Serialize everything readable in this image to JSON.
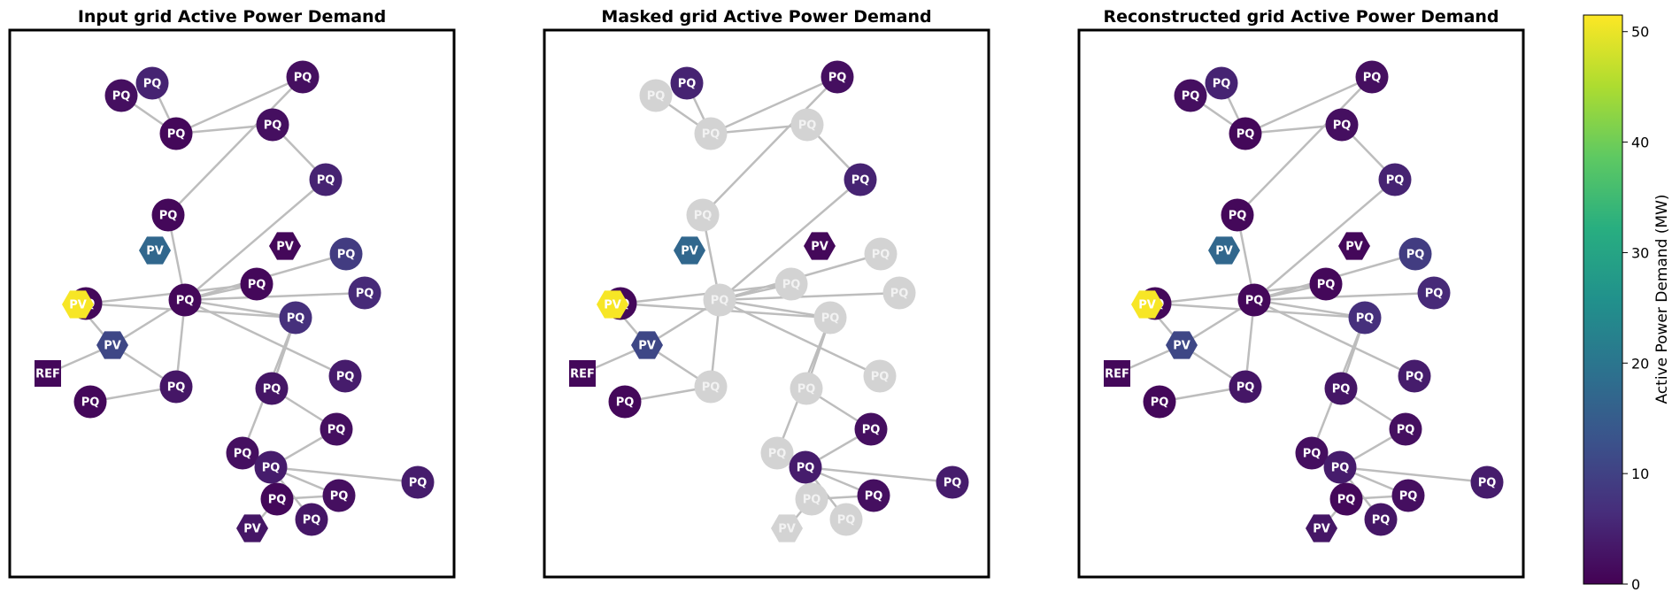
{
  "chart_data": {
    "type": "network",
    "panels": [
      {
        "title": "Input grid Active Power Demand",
        "nodes": [
          {
            "id": 0,
            "type": "PQ",
            "value": 2
          },
          {
            "id": 1,
            "type": "PQ",
            "value": 5
          },
          {
            "id": 2,
            "type": "PQ",
            "value": 1
          },
          {
            "id": 3,
            "type": "PQ",
            "value": 2
          },
          {
            "id": 4,
            "type": "PQ",
            "value": 2
          },
          {
            "id": 5,
            "type": "PQ",
            "value": 5
          },
          {
            "id": 6,
            "type": "PQ",
            "value": 1
          },
          {
            "id": 7,
            "type": "PV",
            "value": 17
          },
          {
            "id": 8,
            "type": "PV",
            "value": 1
          },
          {
            "id": 9,
            "type": "PQ",
            "value": 1
          },
          {
            "id": 10,
            "type": "PQ",
            "value": 9
          },
          {
            "id": 11,
            "type": "PQ",
            "value": 1
          },
          {
            "id": 12,
            "type": "PQ",
            "value": 1
          },
          {
            "id": 13,
            "type": "PQ",
            "value": 7
          },
          {
            "id": 14,
            "type": "PV",
            "value": 51
          },
          {
            "id": 15,
            "type": "PV",
            "value": 11
          },
          {
            "id": 16,
            "type": "PQ",
            "value": 3
          },
          {
            "id": 17,
            "type": "PQ",
            "value": 6
          },
          {
            "id": 18,
            "type": "REF",
            "value": 1
          },
          {
            "id": 19,
            "type": "PQ",
            "value": 1
          },
          {
            "id": 20,
            "type": "PQ",
            "value": 3
          },
          {
            "id": 21,
            "type": "PQ",
            "value": 2
          },
          {
            "id": 22,
            "type": "PQ",
            "value": 2
          },
          {
            "id": 23,
            "type": "PQ",
            "value": 4
          },
          {
            "id": 24,
            "type": "PQ",
            "value": 4
          },
          {
            "id": 25,
            "type": "PQ",
            "value": 1
          },
          {
            "id": 26,
            "type": "PQ",
            "value": 4
          },
          {
            "id": 27,
            "type": "PQ",
            "value": 2
          },
          {
            "id": 28,
            "type": "PQ",
            "value": 3
          },
          {
            "id": 29,
            "type": "PV",
            "value": 3
          }
        ]
      },
      {
        "title": "Masked grid Active Power Demand",
        "nodes": [
          {
            "id": 0,
            "type": "PQ",
            "value": null
          },
          {
            "id": 1,
            "type": "PQ",
            "value": 5
          },
          {
            "id": 2,
            "type": "PQ",
            "value": null
          },
          {
            "id": 3,
            "type": "PQ",
            "value": null
          },
          {
            "id": 4,
            "type": "PQ",
            "value": 2
          },
          {
            "id": 5,
            "type": "PQ",
            "value": 5
          },
          {
            "id": 6,
            "type": "PQ",
            "value": null
          },
          {
            "id": 7,
            "type": "PV",
            "value": 17
          },
          {
            "id": 8,
            "type": "PV",
            "value": 1
          },
          {
            "id": 9,
            "type": "PQ",
            "value": null
          },
          {
            "id": 10,
            "type": "PQ",
            "value": null
          },
          {
            "id": 11,
            "type": "PQ",
            "value": null
          },
          {
            "id": 12,
            "type": "PQ",
            "value": 1
          },
          {
            "id": 13,
            "type": "PQ",
            "value": null
          },
          {
            "id": 14,
            "type": "PV",
            "value": 51
          },
          {
            "id": 15,
            "type": "PV",
            "value": 11
          },
          {
            "id": 16,
            "type": "PQ",
            "value": null
          },
          {
            "id": 17,
            "type": "PQ",
            "value": null
          },
          {
            "id": 18,
            "type": "REF",
            "value": 1
          },
          {
            "id": 19,
            "type": "PQ",
            "value": 1
          },
          {
            "id": 20,
            "type": "PQ",
            "value": null
          },
          {
            "id": 21,
            "type": "PQ",
            "value": 2
          },
          {
            "id": 22,
            "type": "PQ",
            "value": null
          },
          {
            "id": 23,
            "type": "PQ",
            "value": 4
          },
          {
            "id": 24,
            "type": "PQ",
            "value": null
          },
          {
            "id": 25,
            "type": "PQ",
            "value": null
          },
          {
            "id": 26,
            "type": "PQ",
            "value": 4
          },
          {
            "id": 27,
            "type": "PQ",
            "value": 2
          },
          {
            "id": 28,
            "type": "PQ",
            "value": null
          },
          {
            "id": 29,
            "type": "PV",
            "value": null
          }
        ]
      },
      {
        "title": "Reconstructed grid Active Power Demand",
        "nodes": [
          {
            "id": 0,
            "type": "PQ",
            "value": 2
          },
          {
            "id": 1,
            "type": "PQ",
            "value": 5
          },
          {
            "id": 2,
            "type": "PQ",
            "value": 1
          },
          {
            "id": 3,
            "type": "PQ",
            "value": 2
          },
          {
            "id": 4,
            "type": "PQ",
            "value": 2
          },
          {
            "id": 5,
            "type": "PQ",
            "value": 5
          },
          {
            "id": 6,
            "type": "PQ",
            "value": 1
          },
          {
            "id": 7,
            "type": "PV",
            "value": 17
          },
          {
            "id": 8,
            "type": "PV",
            "value": 1
          },
          {
            "id": 9,
            "type": "PQ",
            "value": 1
          },
          {
            "id": 10,
            "type": "PQ",
            "value": 9
          },
          {
            "id": 11,
            "type": "PQ",
            "value": 1
          },
          {
            "id": 12,
            "type": "PQ",
            "value": 1
          },
          {
            "id": 13,
            "type": "PQ",
            "value": 7
          },
          {
            "id": 14,
            "type": "PV",
            "value": 51
          },
          {
            "id": 15,
            "type": "PV",
            "value": 11
          },
          {
            "id": 16,
            "type": "PQ",
            "value": 3
          },
          {
            "id": 17,
            "type": "PQ",
            "value": 6
          },
          {
            "id": 18,
            "type": "REF",
            "value": 1
          },
          {
            "id": 19,
            "type": "PQ",
            "value": 1
          },
          {
            "id": 20,
            "type": "PQ",
            "value": 3
          },
          {
            "id": 21,
            "type": "PQ",
            "value": 2
          },
          {
            "id": 22,
            "type": "PQ",
            "value": 2
          },
          {
            "id": 23,
            "type": "PQ",
            "value": 4
          },
          {
            "id": 24,
            "type": "PQ",
            "value": 4
          },
          {
            "id": 25,
            "type": "PQ",
            "value": 1
          },
          {
            "id": 26,
            "type": "PQ",
            "value": 4
          },
          {
            "id": 27,
            "type": "PQ",
            "value": 2
          },
          {
            "id": 28,
            "type": "PQ",
            "value": 3
          },
          {
            "id": 29,
            "type": "PV",
            "value": 3
          }
        ]
      }
    ],
    "edges": [
      [
        0,
        2
      ],
      [
        1,
        2
      ],
      [
        2,
        3
      ],
      [
        2,
        4
      ],
      [
        3,
        5
      ],
      [
        4,
        6
      ],
      [
        6,
        11
      ],
      [
        5,
        11
      ],
      [
        11,
        10
      ],
      [
        11,
        17
      ],
      [
        11,
        24
      ],
      [
        11,
        13
      ],
      [
        11,
        15
      ],
      [
        11,
        16
      ],
      [
        15,
        14
      ],
      [
        15,
        18
      ],
      [
        15,
        16
      ],
      [
        12,
        13
      ],
      [
        12,
        9
      ],
      [
        9,
        11
      ],
      [
        16,
        19
      ],
      [
        13,
        20
      ],
      [
        13,
        22
      ],
      [
        20,
        21
      ],
      [
        21,
        23
      ],
      [
        22,
        23
      ],
      [
        23,
        26
      ],
      [
        23,
        27
      ],
      [
        23,
        25
      ],
      [
        23,
        28
      ],
      [
        25,
        29
      ],
      [
        27,
        25
      ]
    ],
    "colorbar": {
      "label": "Active Power Demand (MW)",
      "min": 0,
      "max": 51.5,
      "ticks": [
        "0",
        "10",
        "20",
        "30",
        "40",
        "50"
      ],
      "colormap": "viridis"
    },
    "masked_color": "#d3d3d3"
  }
}
